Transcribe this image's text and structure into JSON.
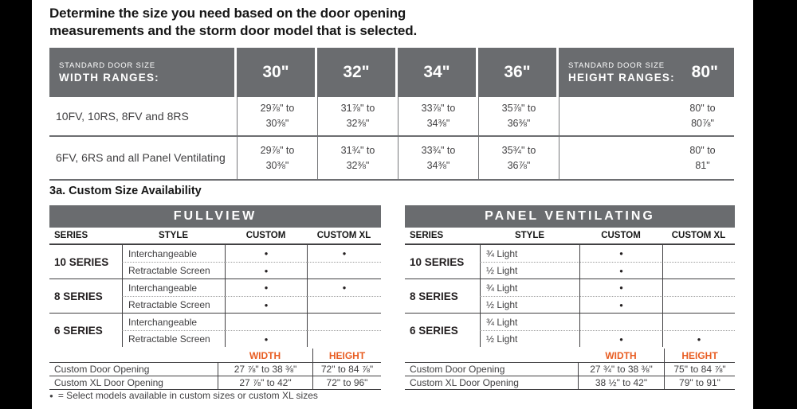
{
  "colors": {
    "header_gray": "#6a6c6f",
    "accent_orange": "#e85d22",
    "line_gray": "#6d6e71",
    "text_dark": "#414042"
  },
  "intro": {
    "title_line1": "Determine the size you need based on the door opening",
    "title_line2": "measurements and the storm door model that is selected."
  },
  "size_table": {
    "width_header": {
      "small": "STANDARD DOOR SIZE",
      "big": "WIDTH RANGES:"
    },
    "width_columns": [
      "30\"",
      "32\"",
      "34\"",
      "36\""
    ],
    "height_header": {
      "small": "STANDARD DOOR SIZE",
      "big": "HEIGHT RANGES:",
      "value": "80\""
    },
    "rows": [
      {
        "label": "10FV, 10RS, 8FV and 8RS",
        "values": [
          "29⅞\" to\n30⅜\"",
          "31⅞\" to\n32⅜\"",
          "33⅞\" to\n34⅜\"",
          "35⅞\" to\n36⅜\""
        ],
        "height": "80\" to\n80⅞\""
      },
      {
        "label": "6FV, 6RS and all Panel Ventilating",
        "values": [
          "29⅞\" to\n30⅜\"",
          "31¾\" to\n32⅜\"",
          "33¾\" to\n34⅜\"",
          "35¾\" to\n36⅞\""
        ],
        "height": "80\" to\n81\""
      }
    ]
  },
  "section_heading": "3a. Custom Size Availability",
  "custom_tables": [
    {
      "title": "FULLVIEW",
      "headers": [
        "SERIES",
        "STYLE",
        "CUSTOM",
        "CUSTOM XL"
      ],
      "groups": [
        {
          "series": "10 SERIES",
          "rows": [
            {
              "style": "Interchangeable",
              "custom": "●",
              "custom_xl": "●"
            },
            {
              "style": "Retractable Screen",
              "custom": "●",
              "custom_xl": ""
            }
          ]
        },
        {
          "series": "8 SERIES",
          "rows": [
            {
              "style": "Interchangeable",
              "custom": "●",
              "custom_xl": "●"
            },
            {
              "style": "Retractable Screen",
              "custom": "●",
              "custom_xl": ""
            }
          ]
        },
        {
          "series": "6 SERIES",
          "rows": [
            {
              "style": "Interchangeable",
              "custom": "",
              "custom_xl": ""
            },
            {
              "style": "Retractable Screen",
              "custom": "●",
              "custom_xl": ""
            }
          ]
        }
      ],
      "width_label": "WIDTH",
      "height_label": "HEIGHT",
      "openings": [
        {
          "label": "Custom Door Opening",
          "width": "27 ⅞\" to 38 ⅜\"",
          "height": "72\" to 84 ⅞\""
        },
        {
          "label": "Custom XL Door Opening",
          "width": "27 ⅞\" to 42\"",
          "height": "72\" to 96\""
        }
      ]
    },
    {
      "title": "PANEL VENTILATING",
      "headers": [
        "SERIES",
        "STYLE",
        "CUSTOM",
        "CUSTOM XL"
      ],
      "groups": [
        {
          "series": "10 SERIES",
          "rows": [
            {
              "style": "¾ Light",
              "custom": "●",
              "custom_xl": ""
            },
            {
              "style": "½ Light",
              "custom": "●",
              "custom_xl": ""
            }
          ]
        },
        {
          "series": "8 SERIES",
          "rows": [
            {
              "style": "¾ Light",
              "custom": "●",
              "custom_xl": ""
            },
            {
              "style": "½ Light",
              "custom": "●",
              "custom_xl": ""
            }
          ]
        },
        {
          "series": "6 SERIES",
          "rows": [
            {
              "style": "¾ Light",
              "custom": "",
              "custom_xl": ""
            },
            {
              "style": "½ Light",
              "custom": "●",
              "custom_xl": "●"
            }
          ]
        }
      ],
      "width_label": "WIDTH",
      "height_label": "HEIGHT",
      "openings": [
        {
          "label": "Custom Door Opening",
          "width": "27 ¾\" to 38 ⅜\"",
          "height": "75\" to 84 ⅞\""
        },
        {
          "label": "Custom XL Door Opening",
          "width": "38 ½\" to 42\"",
          "height": "79\" to 91\""
        }
      ]
    }
  ],
  "footnote": {
    "bullet": "●",
    "text": "= Select models available in custom sizes or custom XL sizes"
  }
}
